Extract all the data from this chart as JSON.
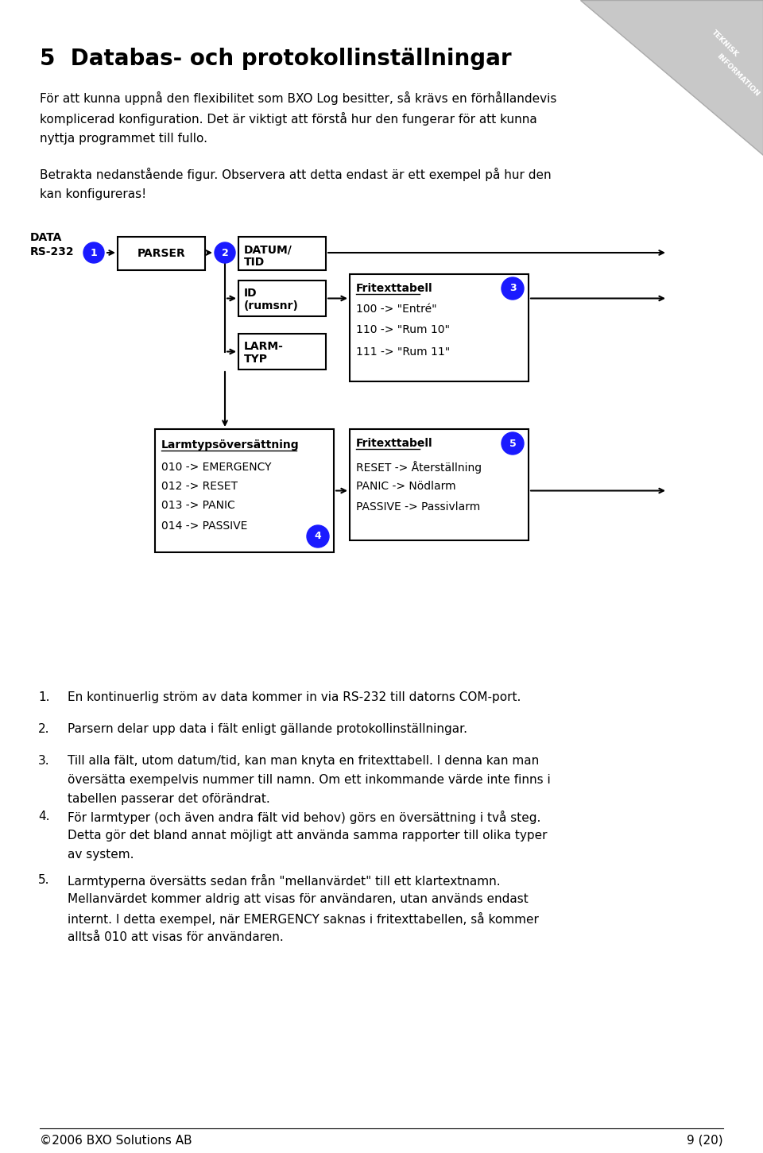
{
  "title": "5  Databas- och protokollinställningar",
  "para1_l1": "För att kunna uppnå den flexibilitet som BXO Log besitter, så krävs en förhållandevis",
  "para1_l2": "komplicerad konfiguration. Det är viktigt att förstå hur den fungerar för att kunna",
  "para1_l3": "nyttja programmet till fullo.",
  "para2_l1": "Betrakta nedanstående figur. Observera att detta endast är ett exempel på hur den",
  "para2_l2": "kan konfigureras!",
  "bullet1": "En kontinuerlig ström av data kommer in via RS-232 till datorns COM-port.",
  "bullet2": "Parsern delar upp data i fält enligt gällande protokollinställningar.",
  "bullet3_l1": "Till alla fält, utom datum/tid, kan man knyta en fritexttabell. I denna kan man",
  "bullet3_l2": "översätta exempelvis nummer till namn. Om ett inkommande värde inte finns i",
  "bullet3_l3": "tabellen passerar det oförändrat.",
  "bullet4_l1": "För larmtyper (och även andra fält vid behov) görs en översättning i två steg.",
  "bullet4_l2": "Detta gör det bland annat möjligt att använda samma rapporter till olika typer",
  "bullet4_l3": "av system.",
  "bullet5_l1": "Larmtyperna översätts sedan från \"mellanvärdet\" till ett klartextnamn.",
  "bullet5_l2": "Mellanvärdet kommer aldrig att visas för användaren, utan används endast",
  "bullet5_l3": "internt. I detta exempel, när EMERGENCY saknas i fritexttabellen, så kommer",
  "bullet5_l4": "alltså 010 att visas för användaren.",
  "footer_left": "©2006 BXO Solutions AB",
  "footer_right": "9 (20)",
  "bg_color": "#ffffff",
  "text_color": "#000000",
  "blue_color": "#1a1aff",
  "box_edge": "#000000"
}
